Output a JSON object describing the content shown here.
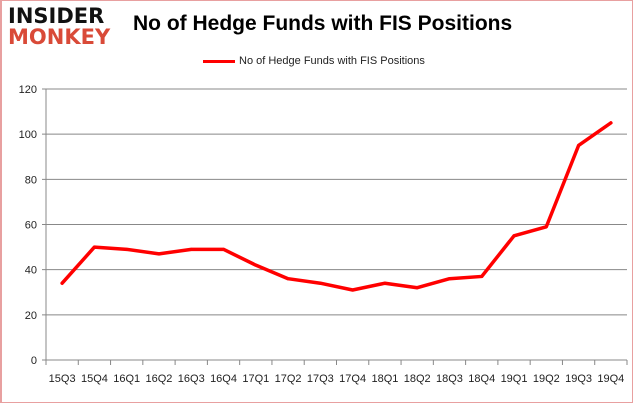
{
  "logo": {
    "line1": "INSIDER",
    "line2": "MONKEY"
  },
  "chart_data": {
    "type": "line",
    "title": "No of Hedge Funds with FIS Positions",
    "categories": [
      "15Q3",
      "15Q4",
      "16Q1",
      "16Q2",
      "16Q3",
      "16Q4",
      "17Q1",
      "17Q2",
      "17Q3",
      "17Q4",
      "18Q1",
      "18Q2",
      "18Q3",
      "18Q4",
      "19Q1",
      "19Q2",
      "19Q3",
      "19Q4"
    ],
    "series": [
      {
        "name": "No of Hedge Funds with FIS Positions",
        "color": "#ff0000",
        "values": [
          34,
          50,
          49,
          47,
          49,
          49,
          42,
          36,
          34,
          31,
          34,
          32,
          36,
          37,
          55,
          59,
          95,
          105
        ]
      }
    ],
    "ylim": [
      0,
      120
    ],
    "yticks": [
      0,
      20,
      40,
      60,
      80,
      100,
      120
    ],
    "grid": true,
    "legend": "top-center"
  }
}
